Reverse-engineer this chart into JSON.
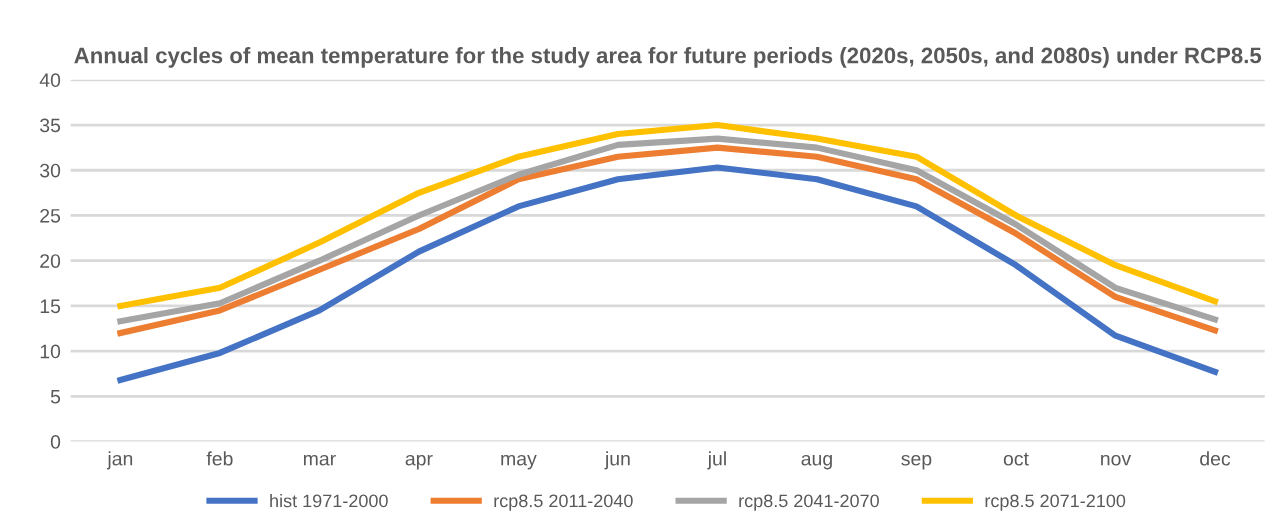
{
  "chart_data": {
    "type": "line",
    "title": "Annual cycles of mean temperature for the study area for future periods (2020s, 2050s, and 2080s) under RCP8.5",
    "categories": [
      "jan",
      "feb",
      "mar",
      "apr",
      "may",
      "jun",
      "jul",
      "aug",
      "sep",
      "oct",
      "nov",
      "dec"
    ],
    "series": [
      {
        "name": "hist 1971-2000",
        "color": "#4472c4",
        "values": [
          6.8,
          9.8,
          14.5,
          21,
          26,
          29,
          30.3,
          29,
          26,
          19.5,
          11.7,
          7.7
        ]
      },
      {
        "name": "rcp8.5 2011-2040",
        "color": "#ed7d31",
        "values": [
          12,
          14.5,
          19,
          23.5,
          29,
          31.5,
          32.5,
          31.5,
          29,
          23,
          16,
          12.3
        ]
      },
      {
        "name": "rcp8.5 2041-2070",
        "color": "#a5a5a5",
        "values": [
          13.3,
          15.3,
          20,
          25,
          29.5,
          32.8,
          33.5,
          32.5,
          30,
          24,
          17,
          13.5
        ]
      },
      {
        "name": "rcp8.5 2071-2100",
        "color": "#ffc000",
        "values": [
          15,
          17,
          22,
          27.5,
          31.5,
          34,
          35,
          33.5,
          31.5,
          25,
          19.5,
          15.5
        ]
      }
    ],
    "ylim": [
      0,
      40
    ],
    "yticks": [
      0,
      5,
      10,
      15,
      20,
      25,
      30,
      35,
      40
    ],
    "grid": "y",
    "legend": "bottom",
    "marker": "none",
    "line_style": "solid"
  }
}
